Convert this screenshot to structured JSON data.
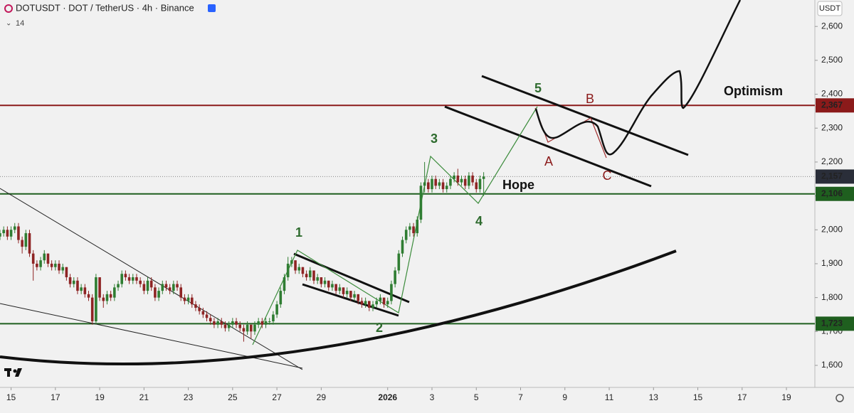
{
  "header": {
    "symbol": "DOTUSDT · DOT / TetherUS · 4h · Binance",
    "indicator": "14",
    "currency": "USDT"
  },
  "chart_data": {
    "type": "candlestick",
    "candles": [
      [
        1.98,
        2.0,
        1.97,
        1.99
      ],
      [
        1.99,
        2.01,
        1.98,
        2.0
      ],
      [
        2.0,
        2.01,
        1.97,
        1.98
      ],
      [
        1.98,
        2.01,
        1.97,
        2.0
      ],
      [
        2.0,
        2.02,
        1.99,
        2.01
      ],
      [
        2.01,
        2.02,
        1.96,
        1.97
      ],
      [
        1.97,
        1.98,
        1.93,
        1.95
      ],
      [
        1.95,
        2.0,
        1.94,
        1.99
      ],
      [
        1.99,
        2.0,
        1.92,
        1.93
      ],
      [
        1.93,
        1.94,
        1.85,
        1.9
      ],
      [
        1.9,
        1.91,
        1.88,
        1.89
      ],
      [
        1.89,
        1.92,
        1.88,
        1.91
      ],
      [
        1.91,
        1.94,
        1.9,
        1.93
      ],
      [
        1.93,
        1.93,
        1.89,
        1.9
      ],
      [
        1.9,
        1.91,
        1.88,
        1.89
      ],
      [
        1.89,
        1.91,
        1.88,
        1.9
      ],
      [
        1.9,
        1.91,
        1.87,
        1.88
      ],
      [
        1.88,
        1.9,
        1.87,
        1.89
      ],
      [
        1.89,
        1.89,
        1.85,
        1.86
      ],
      [
        1.86,
        1.87,
        1.83,
        1.84
      ],
      [
        1.84,
        1.86,
        1.83,
        1.85
      ],
      [
        1.85,
        1.86,
        1.81,
        1.82
      ],
      [
        1.82,
        1.84,
        1.81,
        1.83
      ],
      [
        1.83,
        1.84,
        1.8,
        1.81
      ],
      [
        1.81,
        1.82,
        1.79,
        1.8
      ],
      [
        1.8,
        1.81,
        1.72,
        1.73
      ],
      [
        1.73,
        1.87,
        1.72,
        1.86
      ],
      [
        1.86,
        1.86,
        1.79,
        1.8
      ],
      [
        1.8,
        1.81,
        1.77,
        1.79
      ],
      [
        1.79,
        1.82,
        1.78,
        1.81
      ],
      [
        1.81,
        1.82,
        1.79,
        1.8
      ],
      [
        1.8,
        1.84,
        1.79,
        1.83
      ],
      [
        1.83,
        1.85,
        1.82,
        1.84
      ],
      [
        1.84,
        1.88,
        1.83,
        1.87
      ],
      [
        1.87,
        1.88,
        1.85,
        1.86
      ],
      [
        1.86,
        1.87,
        1.84,
        1.85
      ],
      [
        1.85,
        1.87,
        1.84,
        1.86
      ],
      [
        1.86,
        1.87,
        1.84,
        1.85
      ],
      [
        1.85,
        1.86,
        1.83,
        1.84
      ],
      [
        1.84,
        1.85,
        1.81,
        1.82
      ],
      [
        1.82,
        1.86,
        1.81,
        1.85
      ],
      [
        1.85,
        1.86,
        1.82,
        1.83
      ],
      [
        1.83,
        1.84,
        1.79,
        1.8
      ],
      [
        1.8,
        1.83,
        1.79,
        1.82
      ],
      [
        1.82,
        1.85,
        1.81,
        1.84
      ],
      [
        1.84,
        1.85,
        1.82,
        1.83
      ],
      [
        1.83,
        1.84,
        1.81,
        1.82
      ],
      [
        1.82,
        1.85,
        1.81,
        1.84
      ],
      [
        1.84,
        1.85,
        1.82,
        1.83
      ],
      [
        1.83,
        1.84,
        1.79,
        1.8
      ],
      [
        1.8,
        1.81,
        1.78,
        1.79
      ],
      [
        1.79,
        1.81,
        1.78,
        1.8
      ],
      [
        1.8,
        1.81,
        1.77,
        1.78
      ],
      [
        1.78,
        1.79,
        1.76,
        1.77
      ],
      [
        1.77,
        1.78,
        1.75,
        1.76
      ],
      [
        1.76,
        1.77,
        1.74,
        1.75
      ],
      [
        1.75,
        1.76,
        1.73,
        1.74
      ],
      [
        1.74,
        1.75,
        1.72,
        1.73
      ],
      [
        1.73,
        1.74,
        1.71,
        1.72
      ],
      [
        1.72,
        1.74,
        1.71,
        1.73
      ],
      [
        1.73,
        1.74,
        1.71,
        1.72
      ],
      [
        1.72,
        1.73,
        1.7,
        1.71
      ],
      [
        1.71,
        1.73,
        1.7,
        1.72
      ],
      [
        1.72,
        1.74,
        1.71,
        1.73
      ],
      [
        1.73,
        1.74,
        1.71,
        1.72
      ],
      [
        1.72,
        1.73,
        1.7,
        1.71
      ],
      [
        1.71,
        1.72,
        1.67,
        1.7
      ],
      [
        1.7,
        1.73,
        1.69,
        1.72
      ],
      [
        1.72,
        1.72,
        1.68,
        1.7
      ],
      [
        1.7,
        1.73,
        1.69,
        1.72
      ],
      [
        1.72,
        1.74,
        1.71,
        1.73
      ],
      [
        1.73,
        1.74,
        1.71,
        1.72
      ],
      [
        1.72,
        1.74,
        1.71,
        1.73
      ],
      [
        1.73,
        1.74,
        1.72,
        1.73
      ],
      [
        1.73,
        1.76,
        1.72,
        1.75
      ],
      [
        1.75,
        1.79,
        1.74,
        1.78
      ],
      [
        1.78,
        1.83,
        1.77,
        1.82
      ],
      [
        1.82,
        1.87,
        1.81,
        1.86
      ],
      [
        1.86,
        1.92,
        1.85,
        1.9
      ],
      [
        1.9,
        1.92,
        1.89,
        1.91
      ],
      [
        1.91,
        1.91,
        1.87,
        1.88
      ],
      [
        1.88,
        1.9,
        1.87,
        1.89
      ],
      [
        1.89,
        1.89,
        1.86,
        1.87
      ],
      [
        1.87,
        1.88,
        1.85,
        1.86
      ],
      [
        1.86,
        1.89,
        1.85,
        1.88
      ],
      [
        1.88,
        1.88,
        1.84,
        1.85
      ],
      [
        1.85,
        1.87,
        1.84,
        1.86
      ],
      [
        1.86,
        1.86,
        1.83,
        1.84
      ],
      [
        1.84,
        1.86,
        1.83,
        1.85
      ],
      [
        1.85,
        1.85,
        1.82,
        1.83
      ],
      [
        1.83,
        1.85,
        1.82,
        1.84
      ],
      [
        1.84,
        1.84,
        1.81,
        1.82
      ],
      [
        1.82,
        1.84,
        1.81,
        1.83
      ],
      [
        1.83,
        1.83,
        1.8,
        1.81
      ],
      [
        1.81,
        1.83,
        1.8,
        1.82
      ],
      [
        1.82,
        1.82,
        1.79,
        1.8
      ],
      [
        1.8,
        1.82,
        1.79,
        1.81
      ],
      [
        1.81,
        1.81,
        1.78,
        1.79
      ],
      [
        1.79,
        1.8,
        1.77,
        1.78
      ],
      [
        1.78,
        1.8,
        1.77,
        1.79
      ],
      [
        1.79,
        1.79,
        1.76,
        1.77
      ],
      [
        1.77,
        1.79,
        1.76,
        1.78
      ],
      [
        1.78,
        1.8,
        1.77,
        1.79
      ],
      [
        1.79,
        1.81,
        1.78,
        1.8
      ],
      [
        1.8,
        1.8,
        1.77,
        1.78
      ],
      [
        1.78,
        1.8,
        1.77,
        1.79
      ],
      [
        1.79,
        1.85,
        1.78,
        1.84
      ],
      [
        1.84,
        1.89,
        1.83,
        1.88
      ],
      [
        1.88,
        1.94,
        1.87,
        1.93
      ],
      [
        1.93,
        1.98,
        1.92,
        1.97
      ],
      [
        1.97,
        2.01,
        1.96,
        2.0
      ],
      [
        2.0,
        2.02,
        1.98,
        2.01
      ],
      [
        2.01,
        2.02,
        1.98,
        1.99
      ],
      [
        1.99,
        2.04,
        1.98,
        2.03
      ],
      [
        2.03,
        2.14,
        2.02,
        2.13
      ],
      [
        2.13,
        2.2,
        2.11,
        2.14
      ],
      [
        2.14,
        2.15,
        2.11,
        2.12
      ],
      [
        2.12,
        2.16,
        2.11,
        2.15
      ],
      [
        2.15,
        2.16,
        2.12,
        2.13
      ],
      [
        2.13,
        2.15,
        2.12,
        2.14
      ],
      [
        2.14,
        2.15,
        2.11,
        2.12
      ],
      [
        2.12,
        2.14,
        2.11,
        2.13
      ],
      [
        2.13,
        2.16,
        2.12,
        2.15
      ],
      [
        2.15,
        2.17,
        2.14,
        2.16
      ],
      [
        2.16,
        2.18,
        2.13,
        2.14
      ],
      [
        2.14,
        2.16,
        2.13,
        2.15
      ],
      [
        2.15,
        2.16,
        2.12,
        2.13
      ],
      [
        2.13,
        2.17,
        2.12,
        2.16
      ],
      [
        2.16,
        2.17,
        2.13,
        2.14
      ],
      [
        2.14,
        2.15,
        2.11,
        2.12
      ],
      [
        2.12,
        2.16,
        2.11,
        2.15
      ],
      [
        2.15,
        2.17,
        2.1,
        2.157
      ]
    ],
    "up_color": "#2f7d32",
    "down_color": "#8e2424",
    "xlim": [
      0,
      220.7
    ],
    "xticks": [
      {
        "value": 3,
        "label": "15"
      },
      {
        "value": 15,
        "label": "17"
      },
      {
        "value": 27,
        "label": "19"
      },
      {
        "value": 39,
        "label": "21"
      },
      {
        "value": 51,
        "label": "23"
      },
      {
        "value": 63,
        "label": "25"
      },
      {
        "value": 75,
        "label": "27"
      },
      {
        "value": 87,
        "label": "29"
      },
      {
        "value": 105,
        "label": "2026"
      },
      {
        "value": 117,
        "label": "3"
      },
      {
        "value": 129,
        "label": "5"
      },
      {
        "value": 141,
        "label": "7"
      },
      {
        "value": 153,
        "label": "9"
      },
      {
        "value": 165,
        "label": "11"
      },
      {
        "value": 177,
        "label": "13"
      },
      {
        "value": 189,
        "label": "15"
      },
      {
        "value": 201,
        "label": "17"
      },
      {
        "value": 213,
        "label": "19"
      }
    ],
    "ylim": [
      1.535,
      2.678
    ],
    "yticks": [
      {
        "value": 1.6,
        "label": "1,600"
      },
      {
        "value": 1.7,
        "label": "1,700"
      },
      {
        "value": 1.8,
        "label": "1,800"
      },
      {
        "value": 1.9,
        "label": "1,900"
      },
      {
        "value": 2.0,
        "label": "2,000"
      },
      {
        "value": 2.1,
        "label": "2,100"
      },
      {
        "value": 2.2,
        "label": "2,200"
      },
      {
        "value": 2.3,
        "label": "2,300"
      },
      {
        "value": 2.4,
        "label": "2,400"
      },
      {
        "value": 2.5,
        "label": "2,500"
      },
      {
        "value": 2.6,
        "label": "2,600"
      }
    ],
    "levels": [
      {
        "value": 2.367,
        "label": "2,367",
        "color": "#8b1a1a",
        "dashed": false
      },
      {
        "value": 2.157,
        "label": "2,157",
        "color": "#2a2e39",
        "dashed": true
      },
      {
        "value": 2.106,
        "label": "2,106",
        "color": "#1f5f1f",
        "dashed": false
      },
      {
        "value": 1.723,
        "label": "1,723",
        "color": "#1f5f1f",
        "dashed": false
      }
    ],
    "annotations": {
      "waves": [
        "1",
        "2",
        "3",
        "4",
        "5"
      ],
      "corrective": [
        "A",
        "B",
        "C"
      ],
      "hope": "Hope",
      "optimism": "Optimism"
    }
  }
}
